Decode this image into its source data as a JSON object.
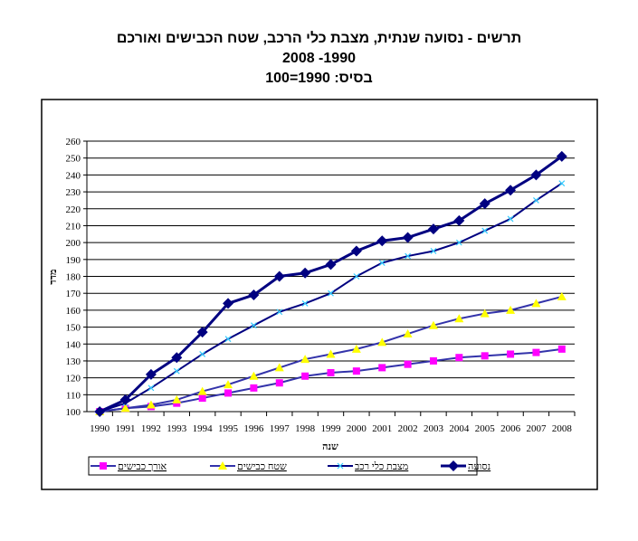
{
  "chart_data": {
    "type": "line",
    "title_lines": [
      "תרשים - נסועה שנתית, מצבת כלי הרכב, שטח הכבישים ואורכם",
      "1990- 2008",
      "בסיס:  1990=100"
    ],
    "xlabel": "שנה",
    "ylabel": "מדד",
    "ylim": [
      100,
      260
    ],
    "yticks": [
      100,
      110,
      120,
      130,
      140,
      150,
      160,
      170,
      180,
      190,
      200,
      210,
      220,
      230,
      240,
      250,
      260
    ],
    "categories": [
      "1990",
      "1991",
      "1992",
      "1993",
      "1994",
      "1995",
      "1996",
      "1997",
      "1998",
      "1999",
      "2000",
      "2001",
      "2002",
      "2003",
      "2004",
      "2005",
      "2006",
      "2007",
      "2008"
    ],
    "grid": true,
    "legend": "bottom",
    "series": [
      {
        "name": "אורך כבישים",
        "color": "#ff00ff",
        "line": "#3333aa",
        "marker": "square",
        "values": [
          100,
          102,
          103,
          105,
          108,
          111,
          114,
          117,
          121,
          123,
          124,
          126,
          128,
          130,
          132,
          133,
          134,
          135,
          137
        ]
      },
      {
        "name": "שטח כבישים",
        "color": "#ffff00",
        "line": "#3333aa",
        "marker": "triangle",
        "values": [
          100,
          102,
          104,
          107,
          112,
          116,
          121,
          126,
          131,
          134,
          137,
          141,
          146,
          151,
          155,
          158,
          160,
          164,
          168
        ]
      },
      {
        "name": "מצבת כלי רכב",
        "color": "#33ccff",
        "line": "#000080",
        "marker": "x",
        "values": [
          100,
          105,
          114,
          124,
          134,
          143,
          151,
          159,
          164,
          170,
          180,
          188,
          192,
          195,
          200,
          207,
          214,
          225,
          235
        ]
      },
      {
        "name": "נסועה",
        "color": "#000080",
        "line": "#000080",
        "marker": "diamond",
        "values": [
          100,
          107,
          122,
          132,
          147,
          164,
          169,
          180,
          182,
          187,
          195,
          201,
          203,
          208,
          213,
          223,
          231,
          240,
          251
        ]
      }
    ]
  }
}
